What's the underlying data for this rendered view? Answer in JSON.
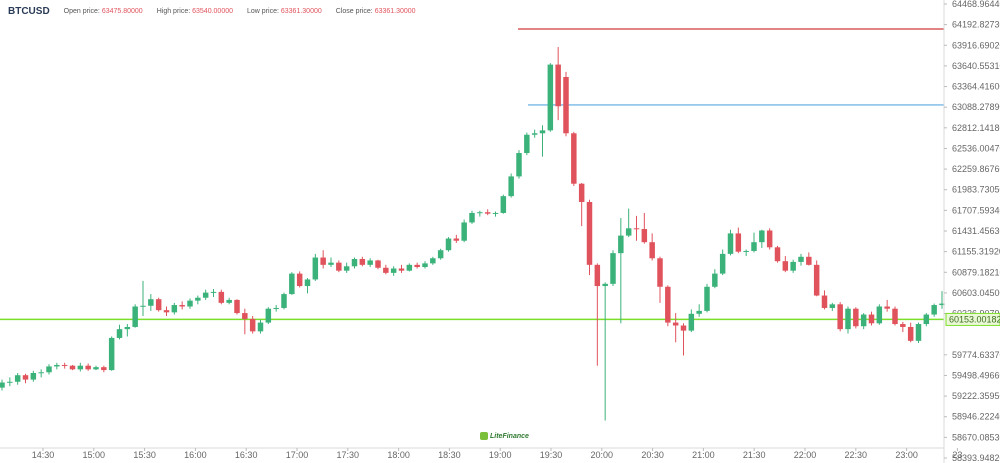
{
  "header": {
    "symbol": "BTCUSD",
    "open_label": "Open price:",
    "open_value": "63475.80000",
    "high_label": "High price:",
    "high_value": "63540.00000",
    "low_label": "Low price:",
    "low_value": "63361.30000",
    "close_label": "Close price:",
    "close_value": "63361.30000"
  },
  "logo_text": "LiteFinance",
  "colors": {
    "up": "#3bb27a",
    "down": "#e0535c",
    "level_green": "#7dde2a",
    "level_red": "#d23a3a",
    "level_blue": "#58a9e0",
    "value_text": "#e0535c"
  },
  "chart_data": {
    "type": "candlestick",
    "symbol": "BTCUSD",
    "x_ticks": [
      "14:30",
      "15:00",
      "15:30",
      "16:00",
      "16:30",
      "17:00",
      "17:30",
      "18:00",
      "18:30",
      "19:00",
      "19:30",
      "20:00",
      "20:30",
      "21:00",
      "21:30",
      "22:00",
      "22:30",
      "23:00",
      "23"
    ],
    "y_ticks": [
      "64468.96440",
      "64192.82730",
      "63916.69020",
      "63640.55310",
      "63364.41600",
      "63088.27890",
      "62812.14180",
      "62536.00470",
      "62259.86760",
      "61983.73050",
      "61707.59340",
      "61431.45630",
      "61155.31920",
      "60879.18210",
      "60603.04500",
      "60326.90790",
      "60153.00182",
      "59774.63370",
      "59498.49660",
      "59222.35950",
      "58946.22240",
      "58670.08530",
      "58393.94820"
    ],
    "y_range": [
      58393.9482,
      64468.9644
    ],
    "levels": [
      {
        "name": "level-red",
        "price": 64127
      },
      {
        "name": "level-blue",
        "price": 63088
      },
      {
        "name": "level-green",
        "price": 60153.00182,
        "label": "60153.00182"
      }
    ],
    "candles": [
      {
        "o": 59220,
        "h": 59330,
        "l": 59180,
        "c": 59290
      },
      {
        "o": 59290,
        "h": 59360,
        "l": 59240,
        "c": 59300
      },
      {
        "o": 59300,
        "h": 59420,
        "l": 59260,
        "c": 59390
      },
      {
        "o": 59390,
        "h": 59410,
        "l": 59280,
        "c": 59330
      },
      {
        "o": 59330,
        "h": 59450,
        "l": 59300,
        "c": 59420
      },
      {
        "o": 59420,
        "h": 59470,
        "l": 59360,
        "c": 59430
      },
      {
        "o": 59430,
        "h": 59540,
        "l": 59400,
        "c": 59510
      },
      {
        "o": 59510,
        "h": 59560,
        "l": 59470,
        "c": 59530
      },
      {
        "o": 59530,
        "h": 59560,
        "l": 59480,
        "c": 59520
      },
      {
        "o": 59520,
        "h": 59530,
        "l": 59460,
        "c": 59470
      },
      {
        "o": 59470,
        "h": 59560,
        "l": 59440,
        "c": 59520
      },
      {
        "o": 59520,
        "h": 59550,
        "l": 59450,
        "c": 59470
      },
      {
        "o": 59470,
        "h": 59520,
        "l": 59460,
        "c": 59500
      },
      {
        "o": 59500,
        "h": 59520,
        "l": 59430,
        "c": 59460
      },
      {
        "o": 59460,
        "h": 59920,
        "l": 59450,
        "c": 59900
      },
      {
        "o": 59900,
        "h": 60080,
        "l": 59880,
        "c": 60020
      },
      {
        "o": 60020,
        "h": 60090,
        "l": 59920,
        "c": 60050
      },
      {
        "o": 60050,
        "h": 60360,
        "l": 60040,
        "c": 60330
      },
      {
        "o": 60330,
        "h": 60680,
        "l": 60200,
        "c": 60340
      },
      {
        "o": 60340,
        "h": 60500,
        "l": 60270,
        "c": 60430
      },
      {
        "o": 60430,
        "h": 60450,
        "l": 60260,
        "c": 60280
      },
      {
        "o": 60280,
        "h": 60330,
        "l": 60200,
        "c": 60250
      },
      {
        "o": 60250,
        "h": 60380,
        "l": 60220,
        "c": 60350
      },
      {
        "o": 60350,
        "h": 60400,
        "l": 60290,
        "c": 60330
      },
      {
        "o": 60330,
        "h": 60440,
        "l": 60300,
        "c": 60410
      },
      {
        "o": 60410,
        "h": 60480,
        "l": 60360,
        "c": 60450
      },
      {
        "o": 60450,
        "h": 60560,
        "l": 60420,
        "c": 60520
      },
      {
        "o": 60520,
        "h": 60570,
        "l": 60460,
        "c": 60530
      },
      {
        "o": 60530,
        "h": 60560,
        "l": 60360,
        "c": 60380
      },
      {
        "o": 60380,
        "h": 60450,
        "l": 60360,
        "c": 60420
      },
      {
        "o": 60420,
        "h": 60430,
        "l": 60220,
        "c": 60240
      },
      {
        "o": 60240,
        "h": 60300,
        "l": 59950,
        "c": 60160
      },
      {
        "o": 60160,
        "h": 60200,
        "l": 59960,
        "c": 59990
      },
      {
        "o": 59990,
        "h": 60150,
        "l": 59960,
        "c": 60110
      },
      {
        "o": 60110,
        "h": 60320,
        "l": 60090,
        "c": 60300
      },
      {
        "o": 60300,
        "h": 60350,
        "l": 60260,
        "c": 60310
      },
      {
        "o": 60310,
        "h": 60520,
        "l": 60290,
        "c": 60500
      },
      {
        "o": 60500,
        "h": 60800,
        "l": 60490,
        "c": 60780
      },
      {
        "o": 60780,
        "h": 60810,
        "l": 60590,
        "c": 60610
      },
      {
        "o": 60610,
        "h": 60720,
        "l": 60510,
        "c": 60700
      },
      {
        "o": 60700,
        "h": 61050,
        "l": 60680,
        "c": 61000
      },
      {
        "o": 61000,
        "h": 61100,
        "l": 60850,
        "c": 60900
      },
      {
        "o": 60900,
        "h": 61000,
        "l": 60870,
        "c": 60930
      },
      {
        "o": 60930,
        "h": 60960,
        "l": 60800,
        "c": 60820
      },
      {
        "o": 60820,
        "h": 60930,
        "l": 60790,
        "c": 60880
      },
      {
        "o": 60880,
        "h": 61000,
        "l": 60850,
        "c": 60980
      },
      {
        "o": 60980,
        "h": 61010,
        "l": 60880,
        "c": 60900
      },
      {
        "o": 60900,
        "h": 60990,
        "l": 60870,
        "c": 60960
      },
      {
        "o": 60960,
        "h": 60970,
        "l": 60840,
        "c": 60860
      },
      {
        "o": 60860,
        "h": 60900,
        "l": 60770,
        "c": 60790
      },
      {
        "o": 60790,
        "h": 60880,
        "l": 60750,
        "c": 60850
      },
      {
        "o": 60850,
        "h": 60900,
        "l": 60790,
        "c": 60820
      },
      {
        "o": 60820,
        "h": 60920,
        "l": 60810,
        "c": 60900
      },
      {
        "o": 60900,
        "h": 60930,
        "l": 60850,
        "c": 60870
      },
      {
        "o": 60870,
        "h": 60950,
        "l": 60850,
        "c": 60920
      },
      {
        "o": 60920,
        "h": 61010,
        "l": 60900,
        "c": 60990
      },
      {
        "o": 60990,
        "h": 61120,
        "l": 60970,
        "c": 61100
      },
      {
        "o": 61100,
        "h": 61280,
        "l": 61080,
        "c": 61260
      },
      {
        "o": 61260,
        "h": 61310,
        "l": 61200,
        "c": 61230
      },
      {
        "o": 61230,
        "h": 61520,
        "l": 61210,
        "c": 61480
      },
      {
        "o": 61480,
        "h": 61640,
        "l": 61460,
        "c": 61610
      },
      {
        "o": 61610,
        "h": 61640,
        "l": 61560,
        "c": 61620
      },
      {
        "o": 61620,
        "h": 61660,
        "l": 61580,
        "c": 61600
      },
      {
        "o": 61600,
        "h": 61630,
        "l": 61560,
        "c": 61610
      },
      {
        "o": 61610,
        "h": 61860,
        "l": 61600,
        "c": 61840
      },
      {
        "o": 61840,
        "h": 62150,
        "l": 61820,
        "c": 62110
      },
      {
        "o": 62110,
        "h": 62470,
        "l": 62080,
        "c": 62430
      },
      {
        "o": 62430,
        "h": 62710,
        "l": 62400,
        "c": 62680
      },
      {
        "o": 62680,
        "h": 62750,
        "l": 62640,
        "c": 62700
      },
      {
        "o": 62700,
        "h": 62810,
        "l": 62380,
        "c": 62740
      },
      {
        "o": 62740,
        "h": 63660,
        "l": 62720,
        "c": 63640
      },
      {
        "o": 63640,
        "h": 63880,
        "l": 62880,
        "c": 63070
      },
      {
        "o": 63470,
        "h": 63540,
        "l": 62660,
        "c": 62700
      },
      {
        "o": 62700,
        "h": 62720,
        "l": 61980,
        "c": 62010
      },
      {
        "o": 62010,
        "h": 62020,
        "l": 61430,
        "c": 61760
      },
      {
        "o": 61760,
        "h": 61790,
        "l": 60760,
        "c": 60900
      },
      {
        "o": 60900,
        "h": 60920,
        "l": 59520,
        "c": 60610
      },
      {
        "o": 60610,
        "h": 60660,
        "l": 58770,
        "c": 60640
      },
      {
        "o": 60640,
        "h": 61100,
        "l": 60610,
        "c": 61060
      },
      {
        "o": 61060,
        "h": 61540,
        "l": 60100,
        "c": 61300
      },
      {
        "o": 61300,
        "h": 61670,
        "l": 61280,
        "c": 61400
      },
      {
        "o": 61400,
        "h": 61570,
        "l": 61230,
        "c": 61390
      },
      {
        "o": 61390,
        "h": 61610,
        "l": 61190,
        "c": 61210
      },
      {
        "o": 61210,
        "h": 61330,
        "l": 60960,
        "c": 60990
      },
      {
        "o": 60990,
        "h": 61010,
        "l": 60380,
        "c": 60600
      },
      {
        "o": 60600,
        "h": 60620,
        "l": 60060,
        "c": 60110
      },
      {
        "o": 60110,
        "h": 60240,
        "l": 59840,
        "c": 60070
      },
      {
        "o": 60070,
        "h": 60100,
        "l": 59660,
        "c": 60000
      },
      {
        "o": 60000,
        "h": 60290,
        "l": 59980,
        "c": 60230
      },
      {
        "o": 60230,
        "h": 60360,
        "l": 60190,
        "c": 60270
      },
      {
        "o": 60270,
        "h": 60640,
        "l": 60250,
        "c": 60600
      },
      {
        "o": 60600,
        "h": 60840,
        "l": 60580,
        "c": 60780
      },
      {
        "o": 60780,
        "h": 61110,
        "l": 60760,
        "c": 61050
      },
      {
        "o": 61050,
        "h": 61380,
        "l": 61030,
        "c": 61330
      },
      {
        "o": 61330,
        "h": 61410,
        "l": 61060,
        "c": 61080
      },
      {
        "o": 61080,
        "h": 61110,
        "l": 61020,
        "c": 61090
      },
      {
        "o": 61090,
        "h": 61340,
        "l": 61070,
        "c": 61210
      },
      {
        "o": 61210,
        "h": 61380,
        "l": 61130,
        "c": 61370
      },
      {
        "o": 61370,
        "h": 61400,
        "l": 61110,
        "c": 61140
      },
      {
        "o": 61140,
        "h": 61160,
        "l": 60930,
        "c": 60950
      },
      {
        "o": 60950,
        "h": 61020,
        "l": 60800,
        "c": 60820
      },
      {
        "o": 60820,
        "h": 60970,
        "l": 60790,
        "c": 60940
      },
      {
        "o": 60940,
        "h": 61050,
        "l": 60890,
        "c": 61010
      },
      {
        "o": 61010,
        "h": 61070,
        "l": 60890,
        "c": 60900
      },
      {
        "o": 60900,
        "h": 60960,
        "l": 60470,
        "c": 60480
      },
      {
        "o": 60480,
        "h": 60550,
        "l": 60290,
        "c": 60310
      },
      {
        "o": 60310,
        "h": 60380,
        "l": 60270,
        "c": 60360
      },
      {
        "o": 60360,
        "h": 60390,
        "l": 59990,
        "c": 60020
      },
      {
        "o": 60020,
        "h": 60330,
        "l": 59960,
        "c": 60300
      },
      {
        "o": 60300,
        "h": 60320,
        "l": 60030,
        "c": 60060
      },
      {
        "o": 60060,
        "h": 60240,
        "l": 60020,
        "c": 60220
      },
      {
        "o": 60220,
        "h": 60260,
        "l": 60070,
        "c": 60100
      },
      {
        "o": 60100,
        "h": 60360,
        "l": 60080,
        "c": 60330
      },
      {
        "o": 60330,
        "h": 60420,
        "l": 60260,
        "c": 60300
      },
      {
        "o": 60300,
        "h": 60330,
        "l": 60070,
        "c": 60090
      },
      {
        "o": 60090,
        "h": 60120,
        "l": 59980,
        "c": 60050
      },
      {
        "o": 60050,
        "h": 60110,
        "l": 59840,
        "c": 59860
      },
      {
        "o": 59860,
        "h": 60110,
        "l": 59830,
        "c": 60090
      },
      {
        "o": 60090,
        "h": 60240,
        "l": 60060,
        "c": 60220
      },
      {
        "o": 60220,
        "h": 60370,
        "l": 60190,
        "c": 60350
      },
      {
        "o": 60350,
        "h": 60540,
        "l": 60300,
        "c": 60370
      }
    ]
  }
}
